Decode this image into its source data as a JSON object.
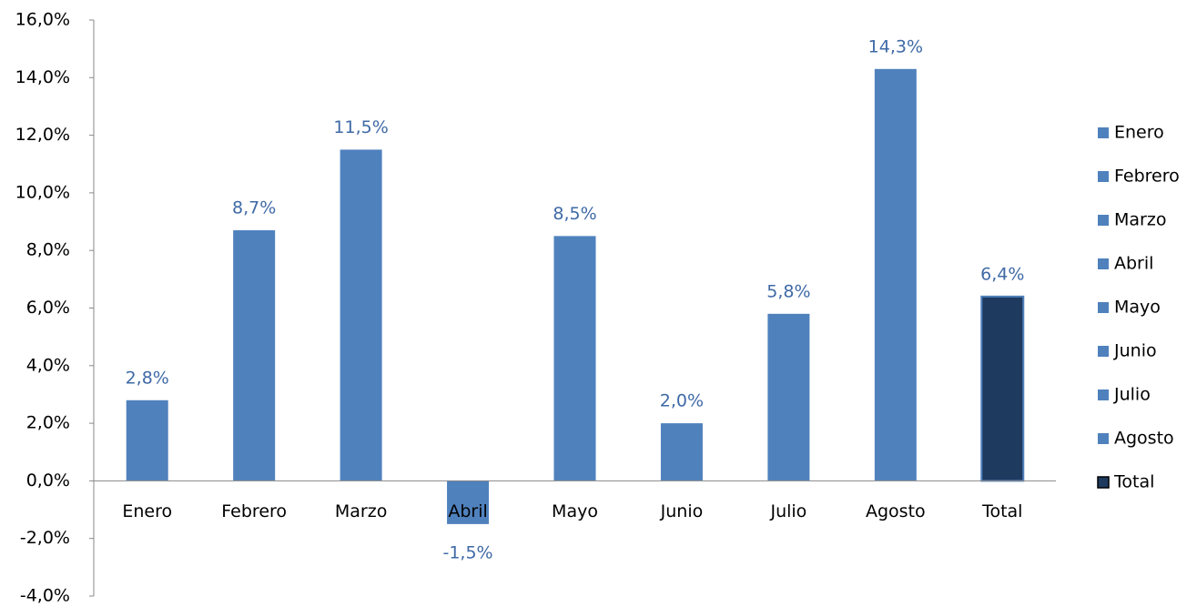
{
  "chart_data": {
    "type": "bar",
    "categories": [
      "Enero",
      "Febrero",
      "Marzo",
      "Abril",
      "Mayo",
      "Junio",
      "Julio",
      "Agosto",
      "Total"
    ],
    "values": [
      2.8,
      8.7,
      11.5,
      -1.5,
      8.5,
      2.0,
      5.8,
      14.3,
      6.4
    ],
    "value_labels": [
      "2,8%",
      "8,7%",
      "11,5%",
      "-1,5%",
      "8,5%",
      "2,0%",
      "5,8%",
      "14,3%",
      "6,4%"
    ],
    "colors": [
      "#4f81bd",
      "#4f81bd",
      "#4f81bd",
      "#4f81bd",
      "#4f81bd",
      "#4f81bd",
      "#4f81bd",
      "#4f81bd",
      "#1f3a5f"
    ],
    "ylim": [
      -4,
      16
    ],
    "yticks": [
      {
        "value": -4,
        "label": "-4,0%"
      },
      {
        "value": -2,
        "label": "-2,0%"
      },
      {
        "value": 0,
        "label": "0,0%"
      },
      {
        "value": 2,
        "label": "2,0%"
      },
      {
        "value": 4,
        "label": "4,0%"
      },
      {
        "value": 6,
        "label": "6,0%"
      },
      {
        "value": 8,
        "label": "8,0%"
      },
      {
        "value": 10,
        "label": "10,0%"
      },
      {
        "value": 12,
        "label": "12,0%"
      },
      {
        "value": 14,
        "label": "14,0%"
      },
      {
        "value": 16,
        "label": "16,0%"
      }
    ],
    "legend": "right",
    "grid": false
  }
}
